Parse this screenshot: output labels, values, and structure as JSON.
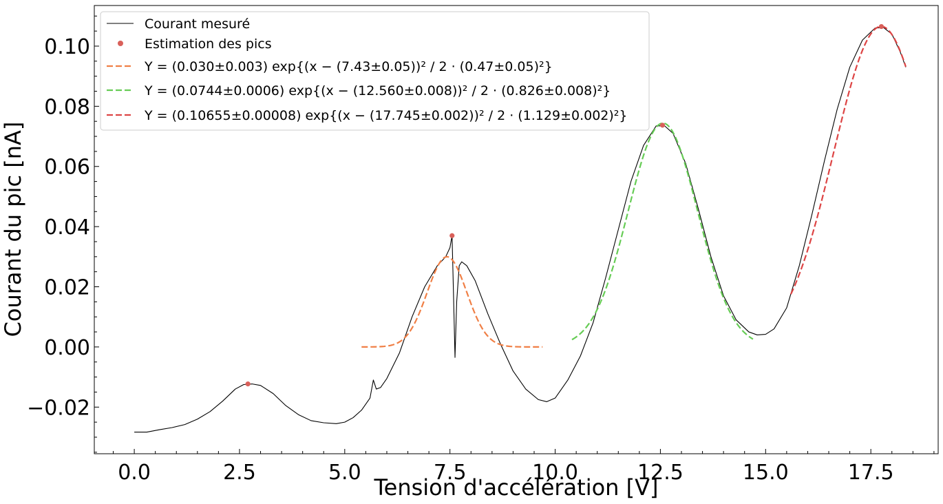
{
  "chart_data": {
    "type": "line",
    "xlabel": "Tension d'accélération [V]",
    "ylabel": "Courant du pic [nA]",
    "xlim": [
      -0.95,
      19.1
    ],
    "ylim": [
      -0.0355,
      0.1135
    ],
    "x_ticks": [
      0.0,
      2.5,
      5.0,
      7.5,
      10.0,
      12.5,
      15.0,
      17.5
    ],
    "x_tick_labels": [
      "0.0",
      "2.5",
      "5.0",
      "7.5",
      "10.0",
      "12.5",
      "15.0",
      "17.5"
    ],
    "y_ticks": [
      -0.02,
      0.0,
      0.02,
      0.04,
      0.06,
      0.08,
      0.1
    ],
    "y_tick_labels": [
      "−0.02",
      "0.00",
      "0.02",
      "0.04",
      "0.06",
      "0.08",
      "0.10"
    ],
    "grid": false,
    "legend_position": "top-left",
    "legend": [
      {
        "label": "Courant mesuré",
        "kind": "line"
      },
      {
        "label": "Estimation des pics",
        "kind": "marker"
      },
      {
        "label": "Y = (0.030±0.003) exp{(x − (7.43±0.05))² / 2 · (0.47±0.05)²}",
        "kind": "dashed"
      },
      {
        "label": "Y = (0.0744±0.0006) exp{(x − (12.560±0.008))² / 2 · (0.826±0.008)²}",
        "kind": "dashed"
      },
      {
        "label": "Y = (0.10655±0.00008) exp{(x − (17.745±0.002))² / 2 · (1.129±0.002)²}",
        "kind": "dashed"
      }
    ],
    "series": [
      {
        "name": "Courant mesuré",
        "color": "#000000",
        "style": "solid",
        "points": [
          [
            0.0,
            -0.0283
          ],
          [
            0.3,
            -0.0283
          ],
          [
            0.6,
            -0.0275
          ],
          [
            0.9,
            -0.0268
          ],
          [
            1.2,
            -0.0258
          ],
          [
            1.5,
            -0.024
          ],
          [
            1.8,
            -0.0215
          ],
          [
            2.1,
            -0.018
          ],
          [
            2.4,
            -0.014
          ],
          [
            2.6,
            -0.0125
          ],
          [
            2.8,
            -0.0123
          ],
          [
            3.0,
            -0.0128
          ],
          [
            3.3,
            -0.0155
          ],
          [
            3.6,
            -0.0195
          ],
          [
            3.9,
            -0.0225
          ],
          [
            4.2,
            -0.0245
          ],
          [
            4.5,
            -0.0252
          ],
          [
            4.8,
            -0.0255
          ],
          [
            5.0,
            -0.025
          ],
          [
            5.2,
            -0.0235
          ],
          [
            5.4,
            -0.021
          ],
          [
            5.6,
            -0.017
          ],
          [
            5.68,
            -0.011
          ],
          [
            5.75,
            -0.014
          ],
          [
            5.85,
            -0.0135
          ],
          [
            6.0,
            -0.0105
          ],
          [
            6.3,
            -0.002
          ],
          [
            6.6,
            0.01
          ],
          [
            6.9,
            0.02
          ],
          [
            7.2,
            0.027
          ],
          [
            7.4,
            0.03
          ],
          [
            7.5,
            0.033
          ],
          [
            7.55,
            0.037
          ],
          [
            7.58,
            0.02
          ],
          [
            7.62,
            -0.0035
          ],
          [
            7.66,
            0.015
          ],
          [
            7.72,
            0.027
          ],
          [
            7.78,
            0.0283
          ],
          [
            7.9,
            0.027
          ],
          [
            8.1,
            0.022
          ],
          [
            8.4,
            0.011
          ],
          [
            8.7,
            0.001
          ],
          [
            9.0,
            -0.008
          ],
          [
            9.3,
            -0.014
          ],
          [
            9.6,
            -0.0175
          ],
          [
            9.8,
            -0.0182
          ],
          [
            10.0,
            -0.017
          ],
          [
            10.3,
            -0.011
          ],
          [
            10.6,
            -0.003
          ],
          [
            10.9,
            0.008
          ],
          [
            11.2,
            0.023
          ],
          [
            11.5,
            0.039
          ],
          [
            11.8,
            0.055
          ],
          [
            12.1,
            0.067
          ],
          [
            12.4,
            0.0735
          ],
          [
            12.6,
            0.0735
          ],
          [
            12.8,
            0.071
          ],
          [
            13.1,
            0.061
          ],
          [
            13.4,
            0.046
          ],
          [
            13.7,
            0.03
          ],
          [
            14.0,
            0.017
          ],
          [
            14.3,
            0.009
          ],
          [
            14.6,
            0.005
          ],
          [
            14.8,
            0.004
          ],
          [
            15.0,
            0.0042
          ],
          [
            15.2,
            0.006
          ],
          [
            15.5,
            0.013
          ],
          [
            15.8,
            0.027
          ],
          [
            16.1,
            0.044
          ],
          [
            16.4,
            0.062
          ],
          [
            16.7,
            0.079
          ],
          [
            17.0,
            0.093
          ],
          [
            17.3,
            0.102
          ],
          [
            17.6,
            0.106
          ],
          [
            17.8,
            0.1062
          ],
          [
            18.0,
            0.104
          ],
          [
            18.2,
            0.098
          ],
          [
            18.33,
            0.093
          ]
        ]
      },
      {
        "name": "Y = (0.030±0.003) exp{(x − (7.43±0.05))² / 2 · (0.47±0.05)²}",
        "color": "#f07f45",
        "style": "dashed",
        "gaussian": {
          "amplitude": 0.03,
          "center": 7.43,
          "sigma": 0.47,
          "x_range": [
            5.4,
            9.7
          ]
        }
      },
      {
        "name": "Y = (0.0744±0.0006) exp{(x − (12.560±0.008))² / 2 · (0.826±0.008)²}",
        "color": "#66cc55",
        "style": "dashed",
        "gaussian": {
          "amplitude": 0.0744,
          "center": 12.56,
          "sigma": 0.826,
          "x_range": [
            10.4,
            14.7
          ]
        }
      },
      {
        "name": "Y = (0.10655±0.00008) exp{(x − (17.745±0.002))² / 2 · (1.129±0.002)²}",
        "color": "#dd4444",
        "style": "dashed",
        "gaussian": {
          "amplitude": 0.10655,
          "center": 17.745,
          "sigma": 1.129,
          "x_range": [
            15.6,
            18.33
          ]
        }
      }
    ],
    "peaks": {
      "name": "Estimation des pics",
      "color": "#d9605a",
      "points": [
        [
          2.7,
          -0.0123
        ],
        [
          7.55,
          0.037
        ],
        [
          12.55,
          0.0737
        ],
        [
          17.75,
          0.1065
        ]
      ]
    }
  }
}
